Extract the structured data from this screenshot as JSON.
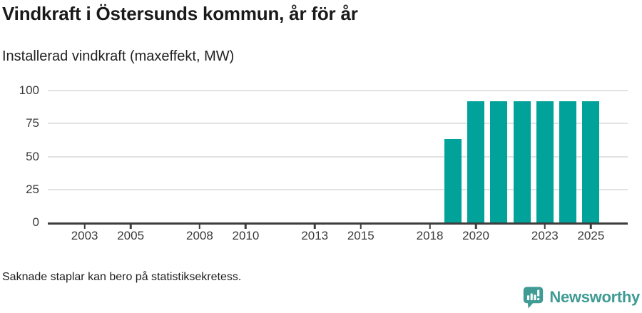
{
  "header": {
    "title": "Vindkraft i Östersunds kommun, år för år",
    "subtitle": "Installerad vindkraft (maxeffekt, MW)"
  },
  "chart_data": {
    "type": "bar",
    "title": "Vindkraft i Östersunds kommun, år för år",
    "subtitle": "Installerad vindkraft (maxeffekt, MW)",
    "x": [
      2019,
      2020,
      2021,
      2022,
      2023,
      2024,
      2025
    ],
    "values": [
      63,
      92,
      92,
      92,
      92,
      92,
      92
    ],
    "xticks": [
      2003,
      2005,
      2008,
      2010,
      2013,
      2015,
      2018,
      2020,
      2023,
      2025
    ],
    "yticks": [
      0,
      25,
      50,
      75,
      100
    ],
    "ylim": [
      0,
      100
    ],
    "xlim": [
      2001.4,
      2026.6
    ],
    "xlabel": "",
    "ylabel": "",
    "legend_position": "none",
    "grid": "horizontal",
    "bar_color": "#00a29a",
    "missing_years_note": "2002-2018 have no bars (value withheld/zero)"
  },
  "footnote": "Saknade staplar kan bero på statistiksekretess.",
  "branding": {
    "logo_text": "Newsworthy",
    "logo_icon": "bar-chart-speech-bubble-icon",
    "logo_color": "#3f9b94"
  },
  "colors": {
    "bar": "#00a29a",
    "grid": "#e2e2e2",
    "axis": "#3d3d3d",
    "title_text": "#1a1a1a"
  }
}
